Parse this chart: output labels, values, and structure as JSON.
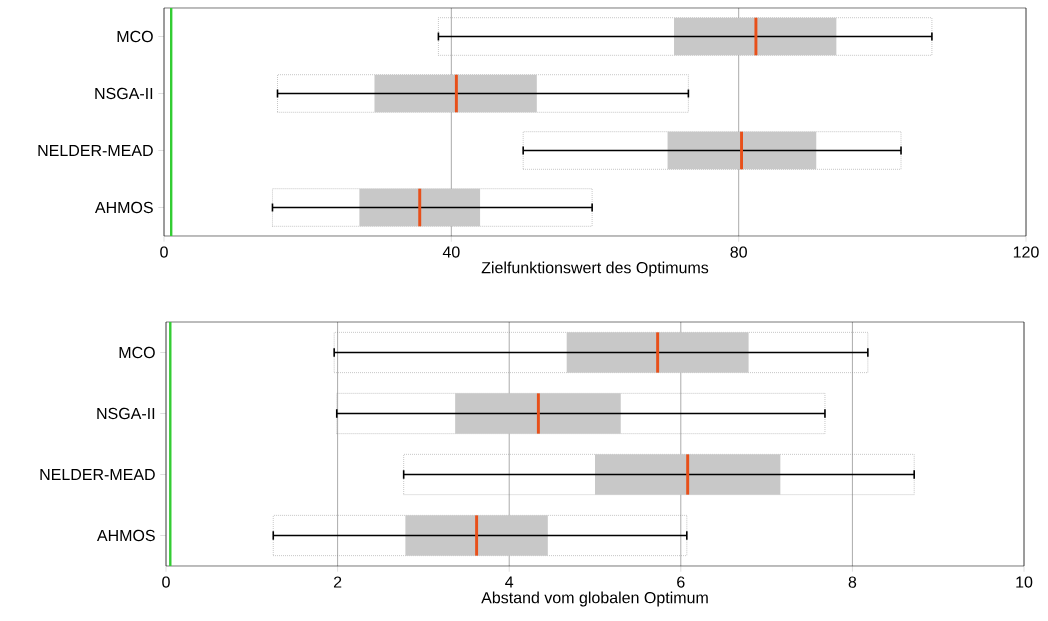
{
  "chart_data": [
    {
      "type": "box",
      "orientation": "horizontal",
      "xlabel": "Zielfunktionswert des Optimums",
      "categories": [
        "MCO",
        "NSGA-II",
        "NELDER-MEAD",
        "AHMOS"
      ],
      "xlim": [
        0,
        120
      ],
      "xticks": [
        0,
        40,
        80,
        120
      ],
      "grid": "x",
      "ref_lines": [
        {
          "axis": "x",
          "value": 1,
          "color": "#33cc33"
        }
      ],
      "series": [
        {
          "color": "#c8c8c8",
          "boxes": [
            {
              "low": 38.2,
              "q1": 71,
              "median": 82.4,
              "q3": 93.6,
              "high": 106.9
            },
            {
              "low": 15.8,
              "q1": 29.3,
              "median": 40.7,
              "q3": 51.9,
              "high": 73
            },
            {
              "low": 50,
              "q1": 70.1,
              "median": 80.4,
              "q3": 90.8,
              "high": 102.6
            },
            {
              "low": 15.1,
              "q1": 27.2,
              "median": 35.6,
              "q3": 44,
              "high": 59.6
            }
          ]
        }
      ]
    },
    {
      "type": "box",
      "orientation": "horizontal",
      "xlabel": "Abstand vom globalen Optimum",
      "categories": [
        "MCO",
        "NSGA-II",
        "NELDER-MEAD",
        "AHMOS"
      ],
      "xlim": [
        0,
        10
      ],
      "xticks": [
        0,
        2,
        4,
        6,
        8,
        10
      ],
      "grid": "x",
      "ref_lines": [
        {
          "axis": "x",
          "value": 0.05,
          "color": "#33cc33"
        }
      ],
      "series": [
        {
          "color": "#c8c8c8",
          "boxes": [
            {
              "low": 1.96,
              "q1": 4.67,
              "median": 5.73,
              "q3": 6.79,
              "high": 8.18
            },
            {
              "low": 1.99,
              "q1": 3.37,
              "median": 4.34,
              "q3": 5.3,
              "high": 7.68
            },
            {
              "low": 2.77,
              "q1": 5.0,
              "median": 6.08,
              "q3": 7.16,
              "high": 8.72
            },
            {
              "low": 1.25,
              "q1": 2.79,
              "median": 3.62,
              "q3": 4.45,
              "high": 6.07
            }
          ]
        }
      ]
    }
  ]
}
